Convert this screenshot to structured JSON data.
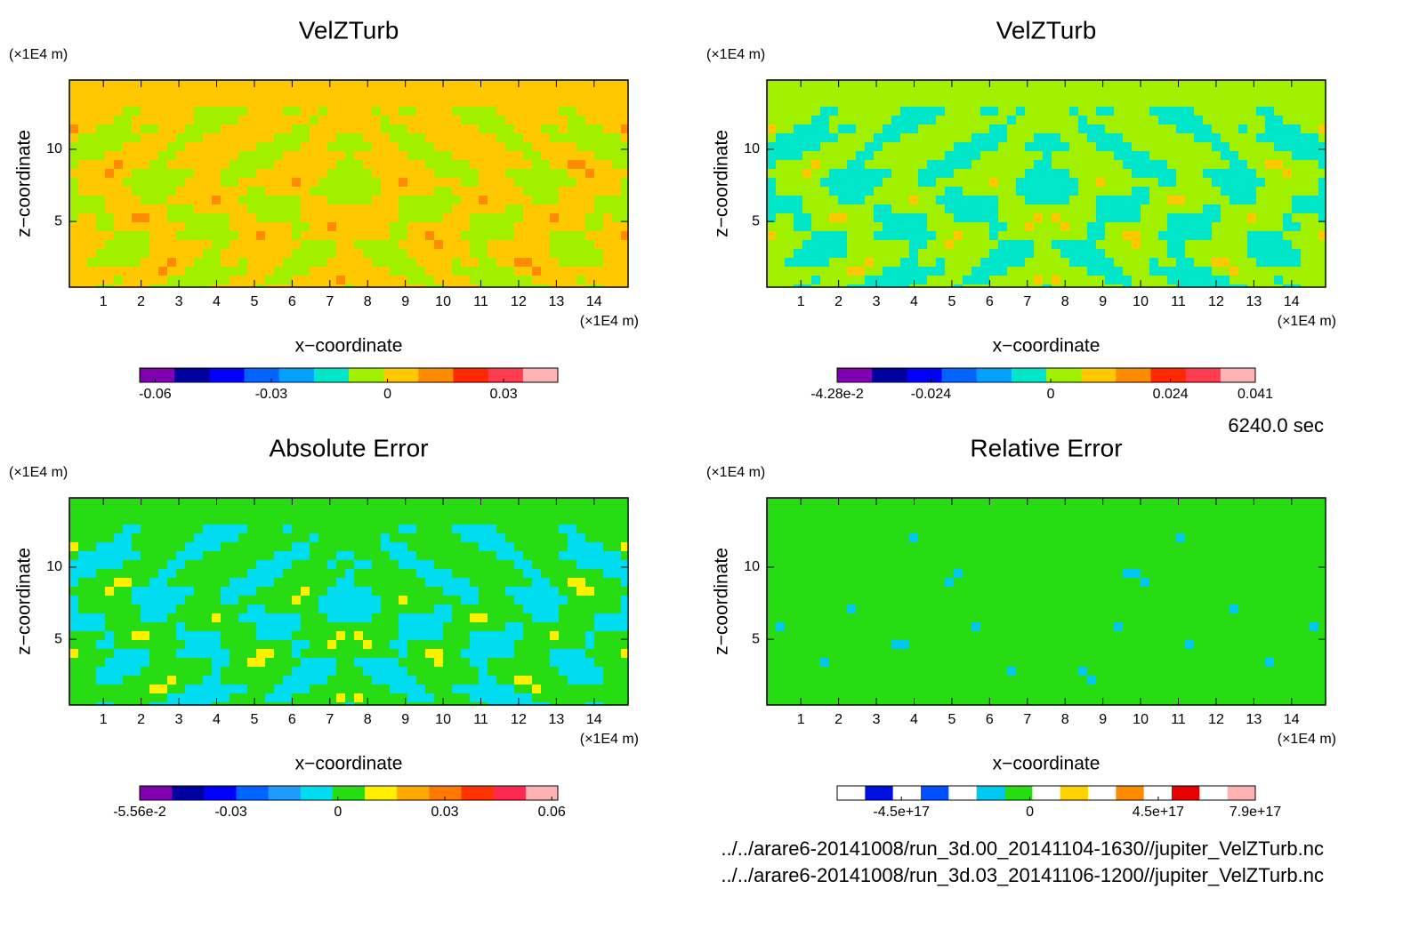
{
  "chart_data": [
    {
      "type": "contour",
      "title": "VelZTurb",
      "x_label": "x−coordinate",
      "y_label": "z−coordinate",
      "x_unit": "(×1E4 m)",
      "y_unit": "(×1E4 m)",
      "xlim": [
        0.1,
        14.9
      ],
      "xticks": [
        1,
        2,
        3,
        4,
        5,
        6,
        7,
        8,
        9,
        10,
        11,
        12,
        13,
        14
      ],
      "ylim": [
        0.45,
        14.8
      ],
      "yticks": [
        5,
        10
      ],
      "colorbar": {
        "clim": [
          -0.064,
          0.044
        ],
        "colors": [
          "#8000b0",
          "#0000a0",
          "#0000ff",
          "#0064ff",
          "#00a0ff",
          "#00e6c8",
          "#a0f000",
          "#ffc800",
          "#ff8c00",
          "#ff2800",
          "#ff3c50",
          "#ffb4b4"
        ],
        "ticks": [
          -0.06,
          -0.03,
          0,
          0.03
        ]
      }
    },
    {
      "type": "contour",
      "title": "VelZTurb",
      "x_label": "x−coordinate",
      "y_label": "z−coordinate",
      "x_unit": "(×1E4 m)",
      "y_unit": "(×1E4 m)",
      "xlim": [
        0.1,
        14.9
      ],
      "xticks": [
        1,
        2,
        3,
        4,
        5,
        6,
        7,
        8,
        9,
        10,
        11,
        12,
        13,
        14
      ],
      "ylim": [
        0.45,
        14.8
      ],
      "yticks": [
        5,
        10
      ],
      "colorbar": {
        "clim": [
          -0.0428,
          0.041
        ],
        "colors": [
          "#8000b0",
          "#0000a0",
          "#0000ff",
          "#0064ff",
          "#00a0ff",
          "#00e6c8",
          "#a0f000",
          "#ffc800",
          "#ff8c00",
          "#ff2800",
          "#ff3c50",
          "#ffb4b4"
        ],
        "ticks": [
          {
            "value": -0.0428,
            "label": "-4.28e-2"
          },
          -0.024,
          0,
          0.024,
          0.041
        ]
      }
    },
    {
      "type": "contour",
      "title": "Absolute Error",
      "x_label": "x−coordinate",
      "y_label": "z−coordinate",
      "x_unit": "(×1E4 m)",
      "y_unit": "(×1E4 m)",
      "xlim": [
        0.1,
        14.9
      ],
      "xticks": [
        1,
        2,
        3,
        4,
        5,
        6,
        7,
        8,
        9,
        10,
        11,
        12,
        13,
        14
      ],
      "ylim": [
        0.45,
        14.8
      ],
      "yticks": [
        5,
        10
      ],
      "colorbar": {
        "clim": [
          -0.0556,
          0.0617
        ],
        "colors": [
          "#8000b0",
          "#0000a0",
          "#0000ff",
          "#0064ff",
          "#1e9bff",
          "#00dcf0",
          "#28dc14",
          "#fff000",
          "#ffaa00",
          "#ff7800",
          "#ff3200",
          "#ff2850",
          "#ffb4b4"
        ],
        "ticks": [
          {
            "value": -0.0556,
            "label": "-5.56e-2"
          },
          -0.03,
          0,
          0.03,
          0.06
        ]
      }
    },
    {
      "type": "contour",
      "title": "Relative Error",
      "x_label": "x−coordinate",
      "y_label": "z−coordinate",
      "x_unit": "(×1E4 m)",
      "y_unit": "(×1E4 m)",
      "xlim": [
        0.1,
        14.9
      ],
      "xticks": [
        1,
        2,
        3,
        4,
        5,
        6,
        7,
        8,
        9,
        10,
        11,
        12,
        13,
        14
      ],
      "ylim": [
        0.45,
        14.8
      ],
      "yticks": [
        5,
        10
      ],
      "colorbar": {
        "clim": [
          -6.75e+17,
          7.9e+17
        ],
        "colors": [
          "#ffffff",
          "#0010e0",
          "#ffffff",
          "#0050ff",
          "#ffffff",
          "#00c8f0",
          "#28dc14",
          "#ffffff",
          "#ffd200",
          "#ffffff",
          "#ff8c00",
          "#ffffff",
          "#e60000",
          "#ffffff",
          "#ffb4b4"
        ],
        "ticks": [
          {
            "value": -4.5e+17,
            "label": "-4.5e+17"
          },
          0,
          {
            "value": 4.5e+17,
            "label": "4.5e+17"
          },
          {
            "value": 7.9e+17,
            "label": "7.9e+17"
          }
        ]
      }
    }
  ],
  "time": "6240.0 sec",
  "files": [
    "../../arare6-20141008/run_3d.00_20141104-1630//jupiter_VelZTurb.nc",
    "../../arare6-20141008/run_3d.03_20141106-1200//jupiter_VelZTurb.nc"
  ]
}
